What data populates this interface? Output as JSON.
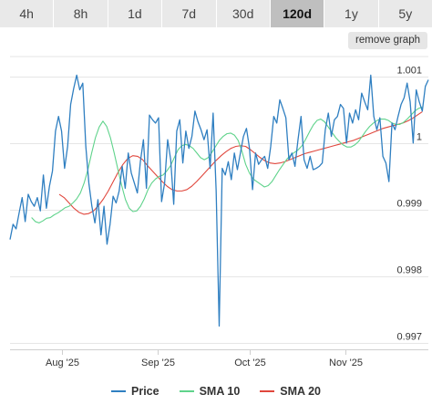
{
  "tabs": [
    {
      "label": "4h",
      "active": false
    },
    {
      "label": "8h",
      "active": false
    },
    {
      "label": "1d",
      "active": false
    },
    {
      "label": "7d",
      "active": false
    },
    {
      "label": "30d",
      "active": false
    },
    {
      "label": "120d",
      "active": true
    },
    {
      "label": "1y",
      "active": false
    },
    {
      "label": "5y",
      "active": false
    }
  ],
  "remove_graph_label": "remove graph",
  "colors": {
    "price": "#2f7fc1",
    "sma10": "#5fd38b",
    "sma20": "#e0473d",
    "grid": "#e6e6e6",
    "active_tab": "#bfbfbf"
  },
  "chart_data": {
    "type": "line",
    "title": "",
    "xlabel": "",
    "ylabel": "",
    "ylim": [
      0.9969,
      1.0013
    ],
    "yticks": [
      {
        "value": 0.997,
        "label": "0.997"
      },
      {
        "value": 0.998,
        "label": "0.998"
      },
      {
        "value": 0.999,
        "label": "0.999"
      },
      {
        "value": 1.0,
        "label": "1"
      },
      {
        "value": 1.001,
        "label": "1.001"
      }
    ],
    "x_day_range": [
      -17,
      119
    ],
    "xticks": [
      {
        "day": 0,
        "label": "Aug '25"
      },
      {
        "day": 31,
        "label": "Sep '25"
      },
      {
        "day": 61,
        "label": "Oct '25"
      },
      {
        "day": 92,
        "label": "Nov '25"
      }
    ],
    "series": [
      {
        "name": "Price",
        "values": [
          0.99855,
          0.99878,
          0.99871,
          0.99895,
          0.99918,
          0.99882,
          0.99923,
          0.99912,
          0.99905,
          0.99918,
          0.99898,
          0.99952,
          0.99902,
          0.99935,
          0.99958,
          1.00018,
          1.0004,
          1.00018,
          0.99962,
          0.99995,
          1.00058,
          1.00082,
          1.00102,
          1.0008,
          1.0009,
          0.99995,
          0.9994,
          0.99905,
          0.9988,
          0.99915,
          0.99862,
          0.99905,
          0.99848,
          0.99878,
          0.9992,
          0.9991,
          0.99928,
          0.99965,
          0.99932,
          0.99985,
          0.99955,
          0.9994,
          0.99925,
          0.99972,
          1.00005,
          0.99932,
          1.00042,
          1.00035,
          1.0003,
          1.00038,
          0.99912,
          0.9994,
          1.00005,
          0.99975,
          0.99908,
          1.00018,
          1.00035,
          0.9997,
          1.00018,
          0.99992,
          1.0001,
          1.00048,
          1.00032,
          1.0002,
          1.00005,
          1.0002,
          0.99962,
          1.00045,
          0.99928,
          0.99725,
          0.99962,
          0.99952,
          0.99972,
          0.99945,
          0.99985,
          0.9996,
          0.99985,
          1.0001,
          1.00022,
          0.99992,
          0.9993,
          0.99985,
          0.99968,
          0.99975,
          0.9998,
          0.99962,
          0.99995,
          1.0004,
          1.0003,
          1.00065,
          1.00052,
          1.00038,
          0.99975,
          0.99985,
          0.99965,
          1.00005,
          1.0004,
          0.99975,
          0.99962,
          0.9998,
          0.9996,
          0.99962,
          0.99965,
          0.9997,
          1.0002,
          1.00045,
          1.0001,
          1.00035,
          1.0004,
          1.00058,
          1.00052,
          1.0,
          1.00045,
          1.0003,
          1.0005,
          1.00035,
          1.00075,
          1.00062,
          1.0005,
          1.00102,
          1.0004,
          1.0002,
          1.00038,
          0.9998,
          0.9997,
          0.99942,
          1.0003,
          1.0002,
          1.0004,
          1.00058,
          1.00068,
          1.0009,
          1.00062,
          1.0,
          1.0008,
          1.00062,
          1.00048,
          1.00085,
          1.00095
        ]
      },
      {
        "name": "SMA 10",
        "values": [
          0.99888,
          0.99882,
          0.9988,
          0.99883,
          0.99887,
          0.99888,
          0.99892,
          0.99895,
          0.99899,
          0.99903,
          0.99905,
          0.9991,
          0.99916,
          0.99925,
          0.9994,
          0.9996,
          0.99985,
          1.00008,
          1.00024,
          1.00033,
          1.00025,
          1.00008,
          0.99985,
          0.9996,
          0.99936,
          0.99915,
          0.99902,
          0.99897,
          0.99898,
          0.99905,
          0.99916,
          0.9993,
          0.9994,
          0.99946,
          0.9995,
          0.99952,
          0.99958,
          0.99966,
          0.99978,
          0.9999,
          0.99996,
          0.99998,
          0.99996,
          0.99992,
          0.99985,
          0.99978,
          0.99975,
          0.99978,
          0.99986,
          0.99995,
          1.00004,
          1.0001,
          1.00014,
          1.00015,
          1.00012,
          1.00004,
          0.99988,
          0.99968,
          0.99955,
          0.99946,
          0.99942,
          0.99938,
          0.99934,
          0.99936,
          0.99942,
          0.99951,
          0.9996,
          0.99968,
          0.99976,
          0.99982,
          0.99986,
          0.9999,
          0.99996,
          1.00006,
          1.00017,
          1.00027,
          1.00034,
          1.00036,
          1.00032,
          1.00024,
          1.00016,
          1.00008,
          1.00002,
          0.99997,
          0.99994,
          0.99994,
          0.99997,
          1.00002,
          1.0001,
          1.00018,
          1.00025,
          1.0003,
          1.00034,
          1.00036,
          1.00036,
          1.00034,
          1.0003,
          1.00028,
          1.00028,
          1.00031,
          1.00036,
          1.00042,
          1.00048,
          1.00052,
          1.00054
        ]
      },
      {
        "name": "SMA 20",
        "values": [
          0.99923,
          0.99918,
          0.9991,
          0.99902,
          0.99896,
          0.99893,
          0.99894,
          0.99898,
          0.99906,
          0.99916,
          0.99928,
          0.99942,
          0.99956,
          0.99968,
          0.99977,
          0.99981,
          0.9998,
          0.99975,
          0.99966,
          0.99958,
          0.9995,
          0.99942,
          0.99935,
          0.9993,
          0.99928,
          0.99928,
          0.9993,
          0.99935,
          0.99942,
          0.9995,
          0.99958,
          0.99966,
          0.99974,
          0.99981,
          0.99987,
          0.99992,
          0.99995,
          0.99996,
          0.99995,
          0.9999,
          0.99984,
          0.99978,
          0.99973,
          0.9997,
          0.99969,
          0.9997,
          0.99972,
          0.99975,
          0.99978,
          0.99981,
          0.99984,
          0.99986,
          0.99988,
          0.9999,
          0.99992,
          0.99994,
          0.99996,
          0.99998,
          1.0,
          1.00002,
          1.00004,
          1.00007,
          1.0001,
          1.00013,
          1.00016,
          1.00019,
          1.00022,
          1.00024,
          1.00026,
          1.00028,
          1.0003,
          1.00033,
          1.00037,
          1.00042,
          1.00047
        ]
      }
    ]
  }
}
